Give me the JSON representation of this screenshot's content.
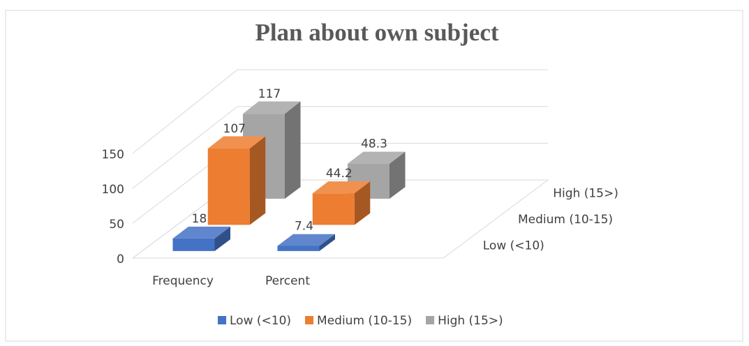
{
  "chart_data": {
    "type": "bar3d",
    "title": "Plan about own subject",
    "categories": [
      "Frequency",
      "Percent"
    ],
    "series": [
      {
        "name": "Low (<10)",
        "color": "#4472c4",
        "values": [
          18,
          7.4
        ]
      },
      {
        "name": "Medium (10-15)",
        "color": "#ed7d31",
        "values": [
          107,
          44.2
        ]
      },
      {
        "name": "High (15>)",
        "color": "#a5a5a5",
        "values": [
          117,
          48.3
        ]
      }
    ],
    "ylim": [
      0,
      150
    ],
    "yticks": [
      0,
      50,
      100,
      150
    ],
    "grid": true,
    "legend": "bottom"
  }
}
